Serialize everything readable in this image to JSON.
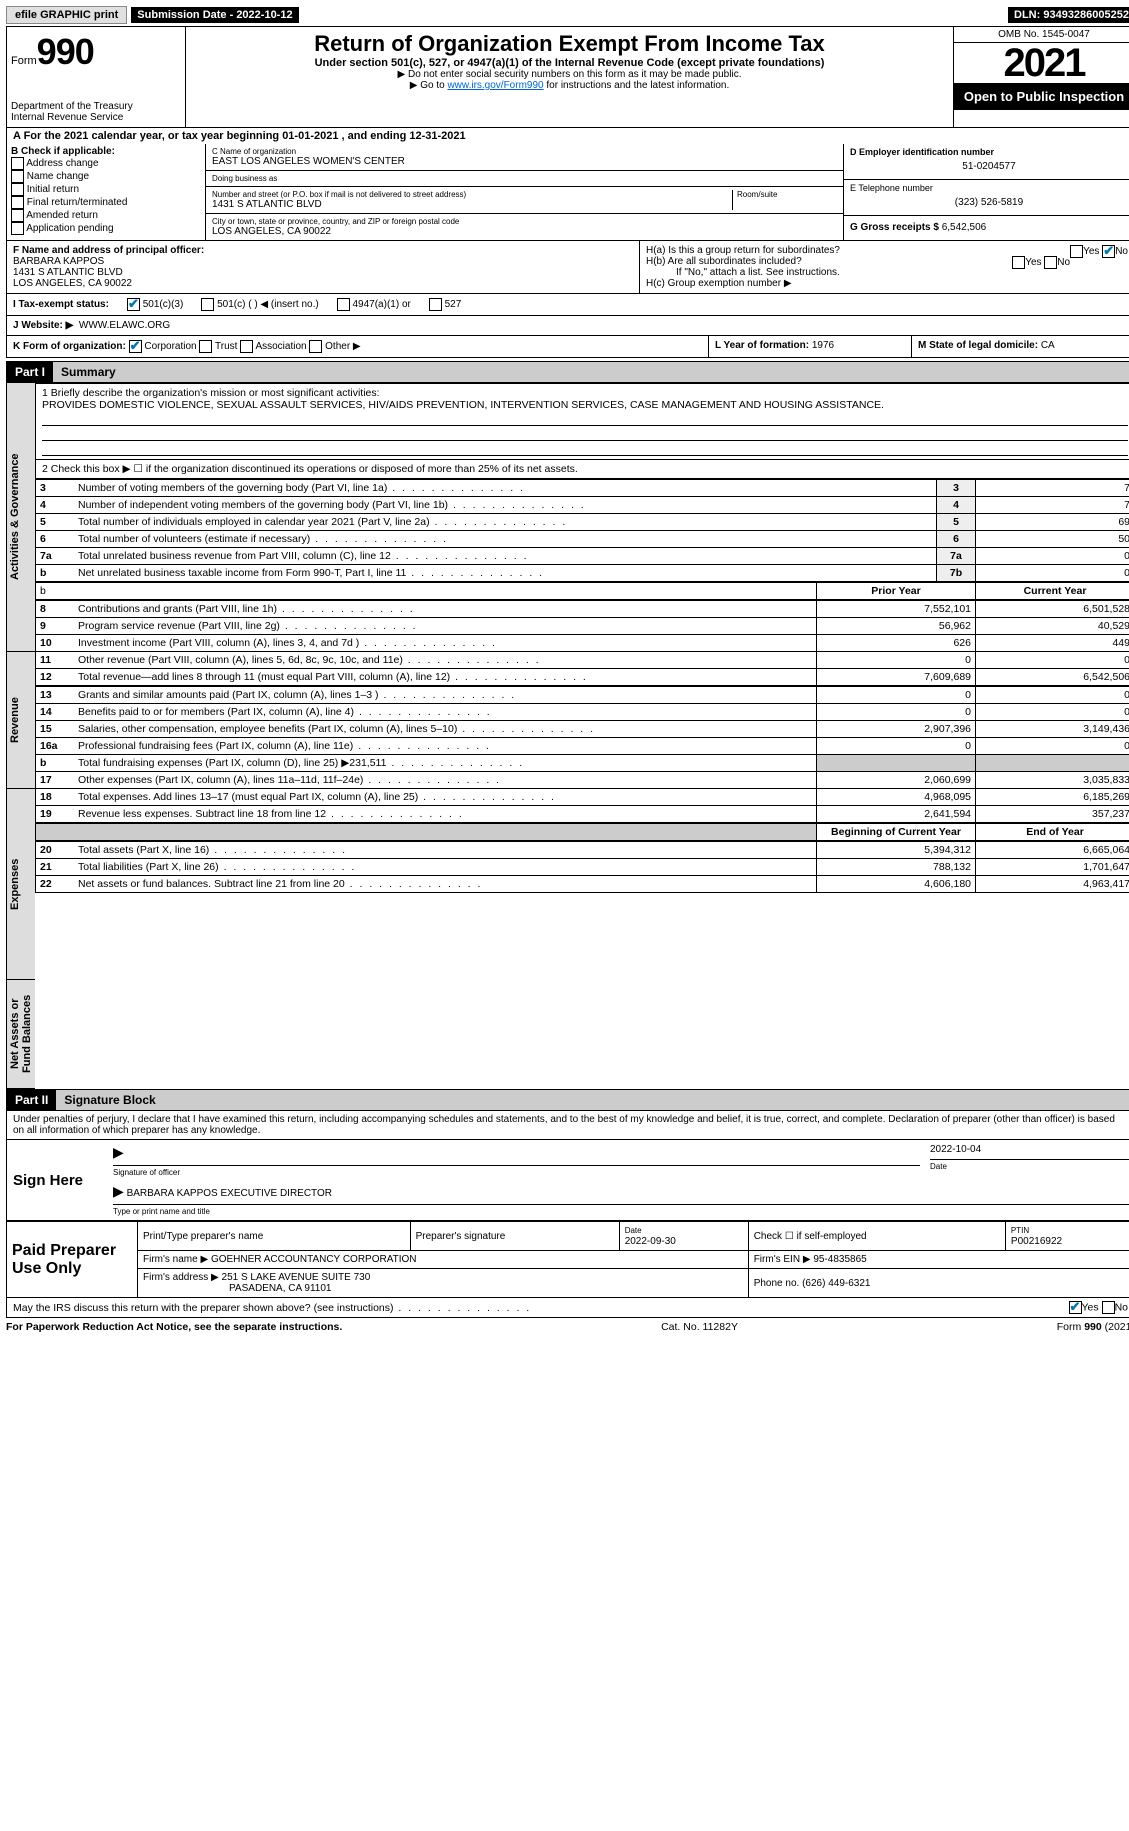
{
  "topbar": {
    "efile": "efile GRAPHIC print",
    "sub_label": "Submission Date - 2022-10-12",
    "dln": "DLN: 93493286005252"
  },
  "header": {
    "form_word": "Form",
    "form_num": "990",
    "dept": "Department of the Treasury",
    "irs": "Internal Revenue Service",
    "title": "Return of Organization Exempt From Income Tax",
    "sub1": "Under section 501(c), 527, or 4947(a)(1) of the Internal Revenue Code (except private foundations)",
    "sub2": "▶ Do not enter social security numbers on this form as it may be made public.",
    "sub3_pre": "▶ Go to ",
    "sub3_link": "www.irs.gov/Form990",
    "sub3_post": " for instructions and the latest information.",
    "omb": "OMB No. 1545-0047",
    "year": "2021",
    "open": "Open to Public Inspection"
  },
  "lineA": "A For the 2021 calendar year, or tax year beginning 01-01-2021    , and ending 12-31-2021",
  "B": {
    "label": "B Check if applicable:",
    "opts": [
      "Address change",
      "Name change",
      "Initial return",
      "Final return/terminated",
      "Amended return",
      "Application pending"
    ]
  },
  "C": {
    "name_label": "C Name of organization",
    "name": "EAST LOS ANGELES WOMEN'S CENTER",
    "dba_label": "Doing business as",
    "dba": "",
    "addr_label": "Number and street (or P.O. box if mail is not delivered to street address)",
    "room_label": "Room/suite",
    "addr": "1431 S ATLANTIC BLVD",
    "city_label": "City or town, state or province, country, and ZIP or foreign postal code",
    "city": "LOS ANGELES, CA  90022"
  },
  "D": {
    "label": "D Employer identification number",
    "val": "51-0204577",
    "E_label": "E Telephone number",
    "E_val": "(323) 526-5819",
    "G_label": "G Gross receipts $",
    "G_val": "6,542,506"
  },
  "F": {
    "label": "F  Name and address of principal officer:",
    "name": "BARBARA KAPPOS",
    "addr1": "1431 S ATLANTIC BLVD",
    "addr2": "LOS ANGELES, CA  90022"
  },
  "H": {
    "a": "H(a)  Is this a group return for subordinates?",
    "a_yes": "Yes",
    "a_no": "No",
    "b": "H(b)  Are all subordinates included?",
    "b_yes": "Yes",
    "b_no": "No",
    "b_note": "If \"No,\" attach a list. See instructions.",
    "c": "H(c)  Group exemption number ▶"
  },
  "I": {
    "label": "I   Tax-exempt status:",
    "opts": [
      "501(c)(3)",
      "501(c) (  ) ◀ (insert no.)",
      "4947(a)(1) or",
      "527"
    ]
  },
  "J": {
    "label": "J   Website: ▶",
    "val": "WWW.ELAWC.ORG"
  },
  "K": {
    "label": "K Form of organization:",
    "opts": [
      "Corporation",
      "Trust",
      "Association",
      "Other ▶"
    ]
  },
  "L": {
    "label": "L Year of formation:",
    "val": "1976"
  },
  "M": {
    "label": "M State of legal domicile:",
    "val": "CA"
  },
  "part1": {
    "hdr": "Part I",
    "title": "Summary"
  },
  "summary": {
    "l1_label": "1  Briefly describe the organization's mission or most significant activities:",
    "l1_text": "PROVIDES DOMESTIC VIOLENCE, SEXUAL ASSAULT SERVICES, HIV/AIDS PREVENTION, INTERVENTION SERVICES, CASE MANAGEMENT AND HOUSING ASSISTANCE.",
    "l2": "2   Check this box ▶ ☐  if the organization discontinued its operations or disposed of more than 25% of its net assets.",
    "rows_gov": [
      {
        "n": "3",
        "d": "Number of voting members of the governing body (Part VI, line 1a)",
        "box": "3",
        "v": "7"
      },
      {
        "n": "4",
        "d": "Number of independent voting members of the governing body (Part VI, line 1b)",
        "box": "4",
        "v": "7"
      },
      {
        "n": "5",
        "d": "Total number of individuals employed in calendar year 2021 (Part V, line 2a)",
        "box": "5",
        "v": "69"
      },
      {
        "n": "6",
        "d": "Total number of volunteers (estimate if necessary)",
        "box": "6",
        "v": "50"
      },
      {
        "n": "7a",
        "d": "Total unrelated business revenue from Part VIII, column (C), line 12",
        "box": "7a",
        "v": "0"
      },
      {
        "n": "b",
        "d": "Net unrelated business taxable income from Form 990-T, Part I, line 11",
        "box": "7b",
        "v": "0"
      }
    ],
    "hdr_prior": "Prior Year",
    "hdr_curr": "Current Year",
    "rows_rev": [
      {
        "n": "8",
        "d": "Contributions and grants (Part VIII, line 1h)",
        "p": "7,552,101",
        "c": "6,501,528"
      },
      {
        "n": "9",
        "d": "Program service revenue (Part VIII, line 2g)",
        "p": "56,962",
        "c": "40,529"
      },
      {
        "n": "10",
        "d": "Investment income (Part VIII, column (A), lines 3, 4, and 7d )",
        "p": "626",
        "c": "449"
      },
      {
        "n": "11",
        "d": "Other revenue (Part VIII, column (A), lines 5, 6d, 8c, 9c, 10c, and 11e)",
        "p": "0",
        "c": "0"
      },
      {
        "n": "12",
        "d": "Total revenue—add lines 8 through 11 (must equal Part VIII, column (A), line 12)",
        "p": "7,609,689",
        "c": "6,542,506"
      }
    ],
    "rows_exp": [
      {
        "n": "13",
        "d": "Grants and similar amounts paid (Part IX, column (A), lines 1–3 )",
        "p": "0",
        "c": "0"
      },
      {
        "n": "14",
        "d": "Benefits paid to or for members (Part IX, column (A), line 4)",
        "p": "0",
        "c": "0"
      },
      {
        "n": "15",
        "d": "Salaries, other compensation, employee benefits (Part IX, column (A), lines 5–10)",
        "p": "2,907,396",
        "c": "3,149,436"
      },
      {
        "n": "16a",
        "d": "Professional fundraising fees (Part IX, column (A), line 11e)",
        "p": "0",
        "c": "0"
      },
      {
        "n": "b",
        "d": "Total fundraising expenses (Part IX, column (D), line 25) ▶231,511",
        "p": "",
        "c": "",
        "shade": true
      },
      {
        "n": "17",
        "d": "Other expenses (Part IX, column (A), lines 11a–11d, 11f–24e)",
        "p": "2,060,699",
        "c": "3,035,833"
      },
      {
        "n": "18",
        "d": "Total expenses. Add lines 13–17 (must equal Part IX, column (A), line 25)",
        "p": "4,968,095",
        "c": "6,185,269"
      },
      {
        "n": "19",
        "d": "Revenue less expenses. Subtract line 18 from line 12",
        "p": "2,641,594",
        "c": "357,237"
      }
    ],
    "hdr_begin": "Beginning of Current Year",
    "hdr_end": "End of Year",
    "rows_net": [
      {
        "n": "20",
        "d": "Total assets (Part X, line 16)",
        "p": "5,394,312",
        "c": "6,665,064"
      },
      {
        "n": "21",
        "d": "Total liabilities (Part X, line 26)",
        "p": "788,132",
        "c": "1,701,647"
      },
      {
        "n": "22",
        "d": "Net assets or fund balances. Subtract line 21 from line 20",
        "p": "4,606,180",
        "c": "4,963,417"
      }
    ],
    "side_gov": "Activities & Governance",
    "side_rev": "Revenue",
    "side_exp": "Expenses",
    "side_net": "Net Assets or Fund Balances"
  },
  "part2": {
    "hdr": "Part II",
    "title": "Signature Block",
    "penalty": "Under penalties of perjury, I declare that I have examined this return, including accompanying schedules and statements, and to the best of my knowledge and belief, it is true, correct, and complete. Declaration of preparer (other than officer) is based on all information of which preparer has any knowledge.",
    "sign_here": "Sign Here",
    "sig_officer": "Signature of officer",
    "sig_date": "2022-10-04",
    "date_lbl": "Date",
    "officer_name": "BARBARA KAPPOS EXECUTIVE DIRECTOR",
    "officer_sub": "Type or print name and title"
  },
  "paid": {
    "label": "Paid Preparer Use Only",
    "h1": "Print/Type preparer's name",
    "h2": "Preparer's signature",
    "h3": "Date",
    "h3v": "2022-09-30",
    "h4": "Check ☐ if self-employed",
    "h5": "PTIN",
    "h5v": "P00216922",
    "firm_lbl": "Firm's name    ▶",
    "firm": "GOEHNER ACCOUNTANCY CORPORATION",
    "ein_lbl": "Firm's EIN ▶",
    "ein": "95-4835865",
    "addr_lbl": "Firm's address ▶",
    "addr1": "251 S LAKE AVENUE SUITE 730",
    "addr2": "PASADENA, CA  91101",
    "phone_lbl": "Phone no.",
    "phone": "(626) 449-6321"
  },
  "consent": {
    "q": "May the IRS discuss this return with the preparer shown above? (see instructions)",
    "yes": "Yes",
    "no": "No"
  },
  "footer": {
    "left": "For Paperwork Reduction Act Notice, see the separate instructions.",
    "mid": "Cat. No. 11282Y",
    "right": "Form 990 (2021)"
  }
}
